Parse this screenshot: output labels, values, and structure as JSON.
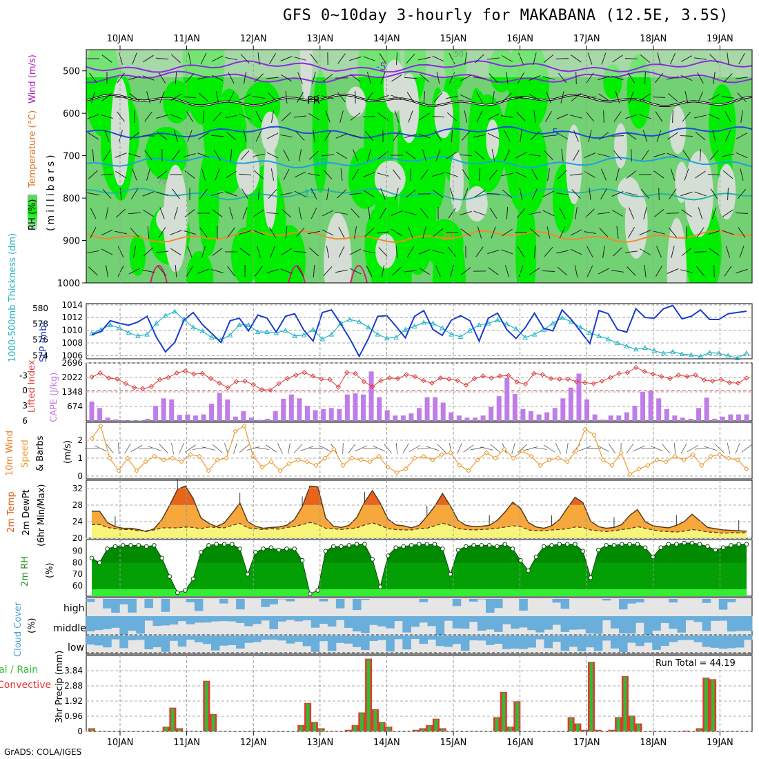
{
  "title": "GFS 0~10day 3-hourly for MAKABANA (12.5E, 3.5S)",
  "footer": "GrADS: COLA/IGES",
  "run_total": "Run Total = 44.19",
  "colors": {
    "rh_light": "#00ee00",
    "rh_mid": "#72d172",
    "rh_dry": "#d4ded4",
    "slp": "#1a3bd1",
    "thickness": "#22b3c8",
    "li": "#e03c3c",
    "cape": "#c07ce8",
    "wind10": "#ef9a2a",
    "temp_dark": "#e8641a",
    "temp_mid": "#f8a83a",
    "dewpt": "#f6f57a",
    "rh_green_dark": "#008a00",
    "cloud": "#6aaedb",
    "rain": "#33bb33",
    "conv": "#e83333"
  },
  "panel_labels": {
    "p1_rh": "RH (%)",
    "p1_temp": "Temperature (°C)",
    "p1_wind": "Wind (m/s)",
    "p1_mb": "(millibars)",
    "p2_thick": "1000-500mb Thickness (dm)",
    "p2_slp": "SLP (mb)",
    "p3_li": "Lifted Index",
    "p3_cape": "CAPE (J/kg)",
    "p4_a": "10m Wind",
    "p4_b": "Speed",
    "p4_c": "& Barbs",
    "p4_unit": "(m/s)",
    "p5_a": "2m Temp",
    "p5_b": "2m DewPt",
    "p5_c": "(6hr Min/Max)",
    "p6_a": "2m RH",
    "p6_unit": "(%)",
    "p7_a": "Cloud Cover",
    "p7_unit": "(%)",
    "p7_high": "high",
    "p7_middle": "middle",
    "p7_low": "low",
    "p8_a": "Total / Rain",
    "p8_b": "Convective",
    "p8_unit": "3hr Precip (mm)"
  },
  "chart_data": [
    {
      "type": "heatmap",
      "panel": "cross-section",
      "x_dates": [
        "10JAN",
        "11JAN",
        "12JAN",
        "13JAN",
        "14JAN",
        "15JAN",
        "16JAN",
        "17JAN",
        "18JAN",
        "19JAN"
      ],
      "y_levels": [
        500,
        600,
        700,
        800,
        900,
        1000
      ],
      "ylim": [
        1000,
        450
      ],
      "isotherm_labels": [
        {
          "label": "-5",
          "level": 490
        },
        {
          "label": "FR",
          "level": 570
        },
        {
          "label": "5",
          "level": 645
        },
        {
          "label": "10",
          "level": 715
        },
        {
          "label": "15",
          "level": 790
        },
        {
          "label": "20",
          "level": 890
        }
      ],
      "rh_contour_labels": [
        "50",
        "70"
      ]
    },
    {
      "type": "line",
      "panel": "slp-thickness",
      "left_axis_ticks": [
        "574",
        "576",
        "578",
        "580"
      ],
      "right_axis_ticks": [
        "1006",
        "1008",
        "1010",
        "1012",
        "1014"
      ],
      "ylim_thickness": [
        573.6,
        580.6
      ],
      "ylim_slp": [
        1005.5,
        1014.2
      ],
      "series": [
        {
          "name": "1000-500mb Thickness (dm)",
          "values": [
            576.8,
            577.3,
            577.9,
            577.5,
            576.9,
            576.5,
            576.7,
            578.1,
            579.1,
            579.6,
            578.6,
            577.6,
            577.1,
            576.3,
            576.0,
            576.6,
            577.9,
            577.9,
            577.0,
            577.0,
            576.9,
            577.2,
            576.5,
            576.6,
            577.3,
            576.1,
            576.7,
            578.1,
            578.6,
            578.3,
            577.6,
            576.7,
            576.2,
            576.3,
            577.3,
            577.7,
            578.2,
            578.1,
            577.5,
            576.7,
            576.4,
            577.2,
            577.9,
            578.1,
            578.5,
            578.0,
            577.4,
            576.3,
            576.7,
            577.3,
            578.1,
            578.8,
            578.3,
            577.6,
            576.9,
            576.5,
            576.1,
            575.6,
            575.2,
            574.8,
            575.0,
            574.6,
            574.3,
            574.5,
            574.2,
            574.1,
            573.9,
            574.4,
            574.3,
            574.0,
            573.7,
            574.3
          ]
        },
        {
          "name": "SLP (mb)",
          "values": [
            1009.3,
            1009.8,
            1011.5,
            1011.1,
            1010.8,
            1011.3,
            1012.2,
            1008.9,
            1006.6,
            1008.1,
            1011.6,
            1012.8,
            1010.9,
            1009.5,
            1008.1,
            1011.5,
            1011.9,
            1009.9,
            1012.4,
            1011.9,
            1009.7,
            1012.2,
            1012.6,
            1010.0,
            1008.3,
            1012.8,
            1013.2,
            1011.0,
            1008.6,
            1005.9,
            1008.7,
            1012.2,
            1012.3,
            1010.6,
            1008.8,
            1012.2,
            1013.1,
            1010.1,
            1009.2,
            1011.6,
            1012.3,
            1011.5,
            1008.3,
            1011.9,
            1012.7,
            1010.1,
            1008.7,
            1010.4,
            1012.7,
            1010.3,
            1009.9,
            1013.2,
            1011.7,
            1009.8,
            1007.9,
            1013.1,
            1012.6,
            1010.1,
            1009.7,
            1013.4,
            1012.0,
            1011.9,
            1013.4,
            1013.9,
            1011.8,
            1012.2,
            1013.2,
            1011.7,
            1011.7,
            1012.6,
            1012.8,
            1013.0
          ]
        }
      ]
    },
    {
      "type": "bar",
      "panel": "lifted-index-cape",
      "left_axis_ticks": [
        "6",
        "3",
        "0",
        "-3"
      ],
      "right_axis_ticks": [
        "674",
        "1348",
        "2022",
        "2696"
      ],
      "ylim_li": [
        6,
        -5.5
      ],
      "ylim_cape": [
        0,
        2696
      ],
      "series": [
        {
          "name": "Lifted Index",
          "values": [
            -2.7,
            -3.5,
            -2.5,
            -2.3,
            -1.4,
            -0.6,
            -0.4,
            -0.8,
            -2.2,
            -2.6,
            -3.5,
            -3.9,
            -3.3,
            -3.4,
            -2.4,
            -1.5,
            -0.6,
            -1.8,
            -1.9,
            -1.2,
            -0.2,
            -0.1,
            -1.4,
            -2.4,
            -3.1,
            -3.6,
            -2.9,
            -2.3,
            -2.2,
            -0.7,
            -3.6,
            -3.4,
            -1.8,
            -0.8,
            -2.0,
            -2.5,
            -2.4,
            -3.2,
            -2.8,
            -2.0,
            -1.5,
            -2.5,
            -2.3,
            -2.0,
            -1.1,
            -2.4,
            -2.9,
            -2.5,
            -2.9,
            -3.0,
            -1.7,
            -1.3,
            -3.4,
            -3.2,
            -2.4,
            -2.3,
            -2.3,
            -1.8,
            -1.6,
            -1.4,
            -1.9,
            -2.6,
            -3.4,
            -3.6,
            -4.6,
            -3.8,
            -3.3,
            -2.8,
            -2.4,
            -3.1,
            -2.8,
            -3.1,
            -2.1,
            -1.9,
            -2.2,
            -1.6,
            -1.5,
            -2.5
          ]
        },
        {
          "name": "CAPE (J/kg)",
          "values": [
            900,
            600,
            150,
            70,
            30,
            20,
            20,
            100,
            700,
            1050,
            1000,
            280,
            300,
            250,
            300,
            800,
            1300,
            1000,
            200,
            450,
            150,
            50,
            100,
            450,
            1030,
            1230,
            1050,
            700,
            500,
            550,
            600,
            550,
            1230,
            1280,
            1230,
            2300,
            1100,
            500,
            250,
            250,
            350,
            600,
            1100,
            1100,
            850,
            400,
            250,
            150,
            150,
            250,
            650,
            1150,
            2000,
            1250,
            550,
            450,
            300,
            400,
            600,
            1050,
            1550,
            2200,
            1000,
            300,
            60,
            250,
            250,
            400,
            700,
            1350,
            1400,
            1050,
            550,
            250,
            150,
            100,
            600,
            1080,
            100,
            200,
            300,
            300,
            300
          ]
        }
      ]
    },
    {
      "type": "line",
      "panel": "10m-wind",
      "y_ticks": [
        "0",
        "1",
        "2"
      ],
      "ylim": [
        0,
        3
      ],
      "series": [
        {
          "name": "10m Wind Speed (m/s)",
          "values": [
            2.1,
            2.8,
            1.0,
            0.3,
            1.0,
            0.3,
            0.8,
            1.1,
            0.9,
            1.0,
            0.8,
            1.2,
            1.1,
            0.3,
            0.9,
            1.0,
            2.5,
            2.8,
            1.1,
            0.5,
            0.8,
            0.3,
            0.7,
            0.9,
            0.8,
            0.6,
            1.0,
            1.5,
            0.6,
            1.0,
            0.9,
            0.8,
            1.1,
            0.5,
            0.2,
            0.4,
            1.0,
            1.1,
            0.9,
            1.2,
            1.3,
            0.6,
            0.3,
            0.9,
            1.3,
            1.0,
            1.5,
            1.0,
            1.4,
            1.1,
            0.6,
            0.9,
            1.0,
            0.8,
            1.4,
            2.6,
            2.3,
            0.9,
            0.6,
            1.3,
            0.1,
            0.4,
            0.6,
            0.9,
            0.8,
            1.1,
            0.9,
            1.2,
            0.6,
            1.1,
            1.2,
            1.0,
            0.9,
            0.4
          ]
        }
      ]
    },
    {
      "type": "area",
      "panel": "2m-temp-dewpt",
      "y_ticks": [
        "20",
        "24",
        "28",
        "32"
      ],
      "ylim": [
        20,
        34
      ],
      "series": [
        {
          "name": "2m Temp",
          "values": [
            26.5,
            26.5,
            23.8,
            22.8,
            22.4,
            22.4,
            22.1,
            21.6,
            22.3,
            24.5,
            28.0,
            31.8,
            32.6,
            29.6,
            24.9,
            23.6,
            22.8,
            23.7,
            26.0,
            28.5,
            24.0,
            22.9,
            22.4,
            22.6,
            22.7,
            23.1,
            24.5,
            27.6,
            32.6,
            32.4,
            24.9,
            22.9,
            22.6,
            23.1,
            25.0,
            28.7,
            31.5,
            28.5,
            24.6,
            23.2,
            23.0,
            22.5,
            23.1,
            25.3,
            27.7,
            30.8,
            27.8,
            24.3,
            23.1,
            22.8,
            22.9,
            23.1,
            24.3,
            26.3,
            28.7,
            27.2,
            23.8,
            22.7,
            22.4,
            23.0,
            24.5,
            27.3,
            29.9,
            28.6,
            24.1,
            22.8,
            22.4,
            22.6,
            23.3,
            25.5,
            26.9,
            24.0,
            23.0,
            22.7,
            22.5,
            23.1,
            24.0,
            25.8,
            24.2,
            22.6,
            22.3,
            22.0,
            21.9,
            21.8,
            21.7
          ]
        },
        {
          "name": "2m DewPt",
          "values": [
            23.3,
            23.3,
            22.6,
            22.3,
            22.1,
            22.1,
            21.8,
            21.8,
            22.0,
            22.5,
            22.5,
            22.5,
            22.7,
            22.6,
            22.3,
            22.7,
            22.6,
            22.5,
            23.1,
            23.6,
            22.5,
            22.3,
            22.1,
            22.3,
            22.2,
            22.6,
            22.8,
            23.3,
            23.8,
            23.3,
            22.4,
            22.3,
            22.1,
            22.3,
            22.5,
            23.2,
            23.7,
            23.1,
            22.3,
            22.1,
            22.0,
            22.0,
            22.3,
            22.4,
            23.0,
            23.6,
            23.1,
            22.3,
            22.1,
            22.0,
            22.1,
            22.2,
            22.4,
            22.7,
            23.0,
            22.8,
            22.0,
            21.8,
            21.8,
            22.0,
            22.1,
            22.3,
            22.7,
            22.6,
            22.0,
            21.8,
            21.6,
            21.8,
            22.1,
            22.3,
            22.8,
            22.4,
            22.0,
            21.7,
            21.6,
            21.5,
            21.7,
            22.1,
            21.9,
            21.5,
            21.4,
            21.2,
            21.3,
            21.3,
            21.3
          ]
        }
      ]
    },
    {
      "type": "area",
      "panel": "2m-rh",
      "y_ticks": [
        "60",
        "70",
        "80",
        "90"
      ],
      "ylim": [
        51,
        100
      ],
      "series": [
        {
          "name": "2m RH",
          "values": [
            84,
            80,
            92,
            94,
            95,
            95,
            95,
            94,
            95,
            84,
            68,
            54,
            56,
            66,
            89,
            95,
            96,
            96,
            96,
            92,
            70,
            89,
            92,
            93,
            91,
            92,
            92,
            82,
            53,
            56,
            90,
            94,
            94,
            95,
            96,
            96,
            83,
            59,
            86,
            93,
            94,
            95,
            96,
            96,
            96,
            92,
            70,
            91,
            94,
            95,
            95,
            95,
            94,
            96,
            92,
            82,
            73,
            85,
            94,
            95,
            96,
            96,
            96,
            90,
            67,
            91,
            95,
            95,
            96,
            96,
            96,
            93,
            85,
            93,
            96,
            96,
            97,
            97,
            96,
            94,
            91,
            93,
            95,
            96,
            96
          ]
        }
      ]
    },
    {
      "type": "bar",
      "panel": "cloud-cover",
      "y_ticks": [
        "high",
        "middle",
        "low"
      ]
    },
    {
      "type": "bar",
      "panel": "3hr-precip",
      "y_ticks": [
        "0",
        "0.96",
        "1.92",
        "2.88",
        "3.84"
      ],
      "ylim": [
        0,
        4.8
      ],
      "series": [
        {
          "name": "Total / Rain",
          "values": [
            0.2,
            0,
            0,
            0,
            0,
            0,
            0,
            0,
            0,
            0,
            0,
            0.3,
            1.5,
            0.2,
            0,
            0,
            0,
            3.2,
            1.1,
            0,
            0,
            0,
            0,
            0,
            0,
            0,
            0,
            0,
            0,
            0,
            0,
            0.4,
            1.8,
            0.6,
            0.2,
            0,
            0,
            0,
            0.1,
            0.4,
            1.2,
            4.6,
            1.4,
            0.6,
            0.3,
            0,
            0,
            0,
            0.1,
            0.2,
            0.4,
            0.8,
            0.2,
            0,
            0,
            0,
            0,
            0,
            0,
            0,
            0.9,
            2.5,
            0.3,
            1.9,
            0,
            0,
            0,
            0,
            0,
            0,
            0,
            0.9,
            0.5,
            0.1,
            4.4,
            0.1,
            0,
            0.1,
            0.9,
            3.5,
            1.0,
            0.5,
            0,
            0,
            0,
            0,
            0,
            0,
            0.05,
            0,
            0.2,
            3.4,
            3.3,
            0,
            0,
            0,
            0,
            0
          ]
        }
      ]
    }
  ]
}
